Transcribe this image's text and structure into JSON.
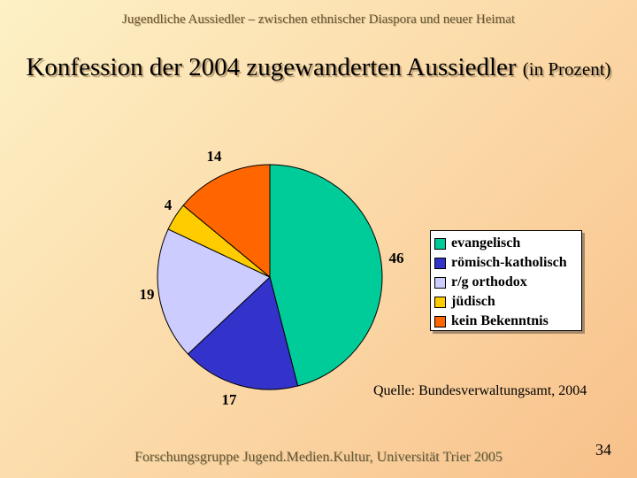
{
  "header": {
    "text": "Jugendliche Aussiedler – zwischen ethnischer Diaspora und neuer Heimat"
  },
  "title": {
    "main": "Konfession der 2004 zugewanderten Aussiedler",
    "sub": "(in Prozent)"
  },
  "chart_data": {
    "type": "pie",
    "categories": [
      "evangelisch",
      "römisch-katholisch",
      "r/g orthodox",
      "jüdisch",
      "kein Bekenntnis"
    ],
    "values": [
      46,
      17,
      19,
      4,
      14
    ],
    "colors": [
      "#00cc99",
      "#3333cc",
      "#ccccff",
      "#ffcc00",
      "#ff6600"
    ],
    "legend_position": "right"
  },
  "source": {
    "text": "Quelle: Bundesverwaltungsamt, 2004"
  },
  "footer": {
    "text": "Forschungsgruppe Jugend.Medien.Kultur, Universität Trier 2005"
  },
  "page_number": "34"
}
